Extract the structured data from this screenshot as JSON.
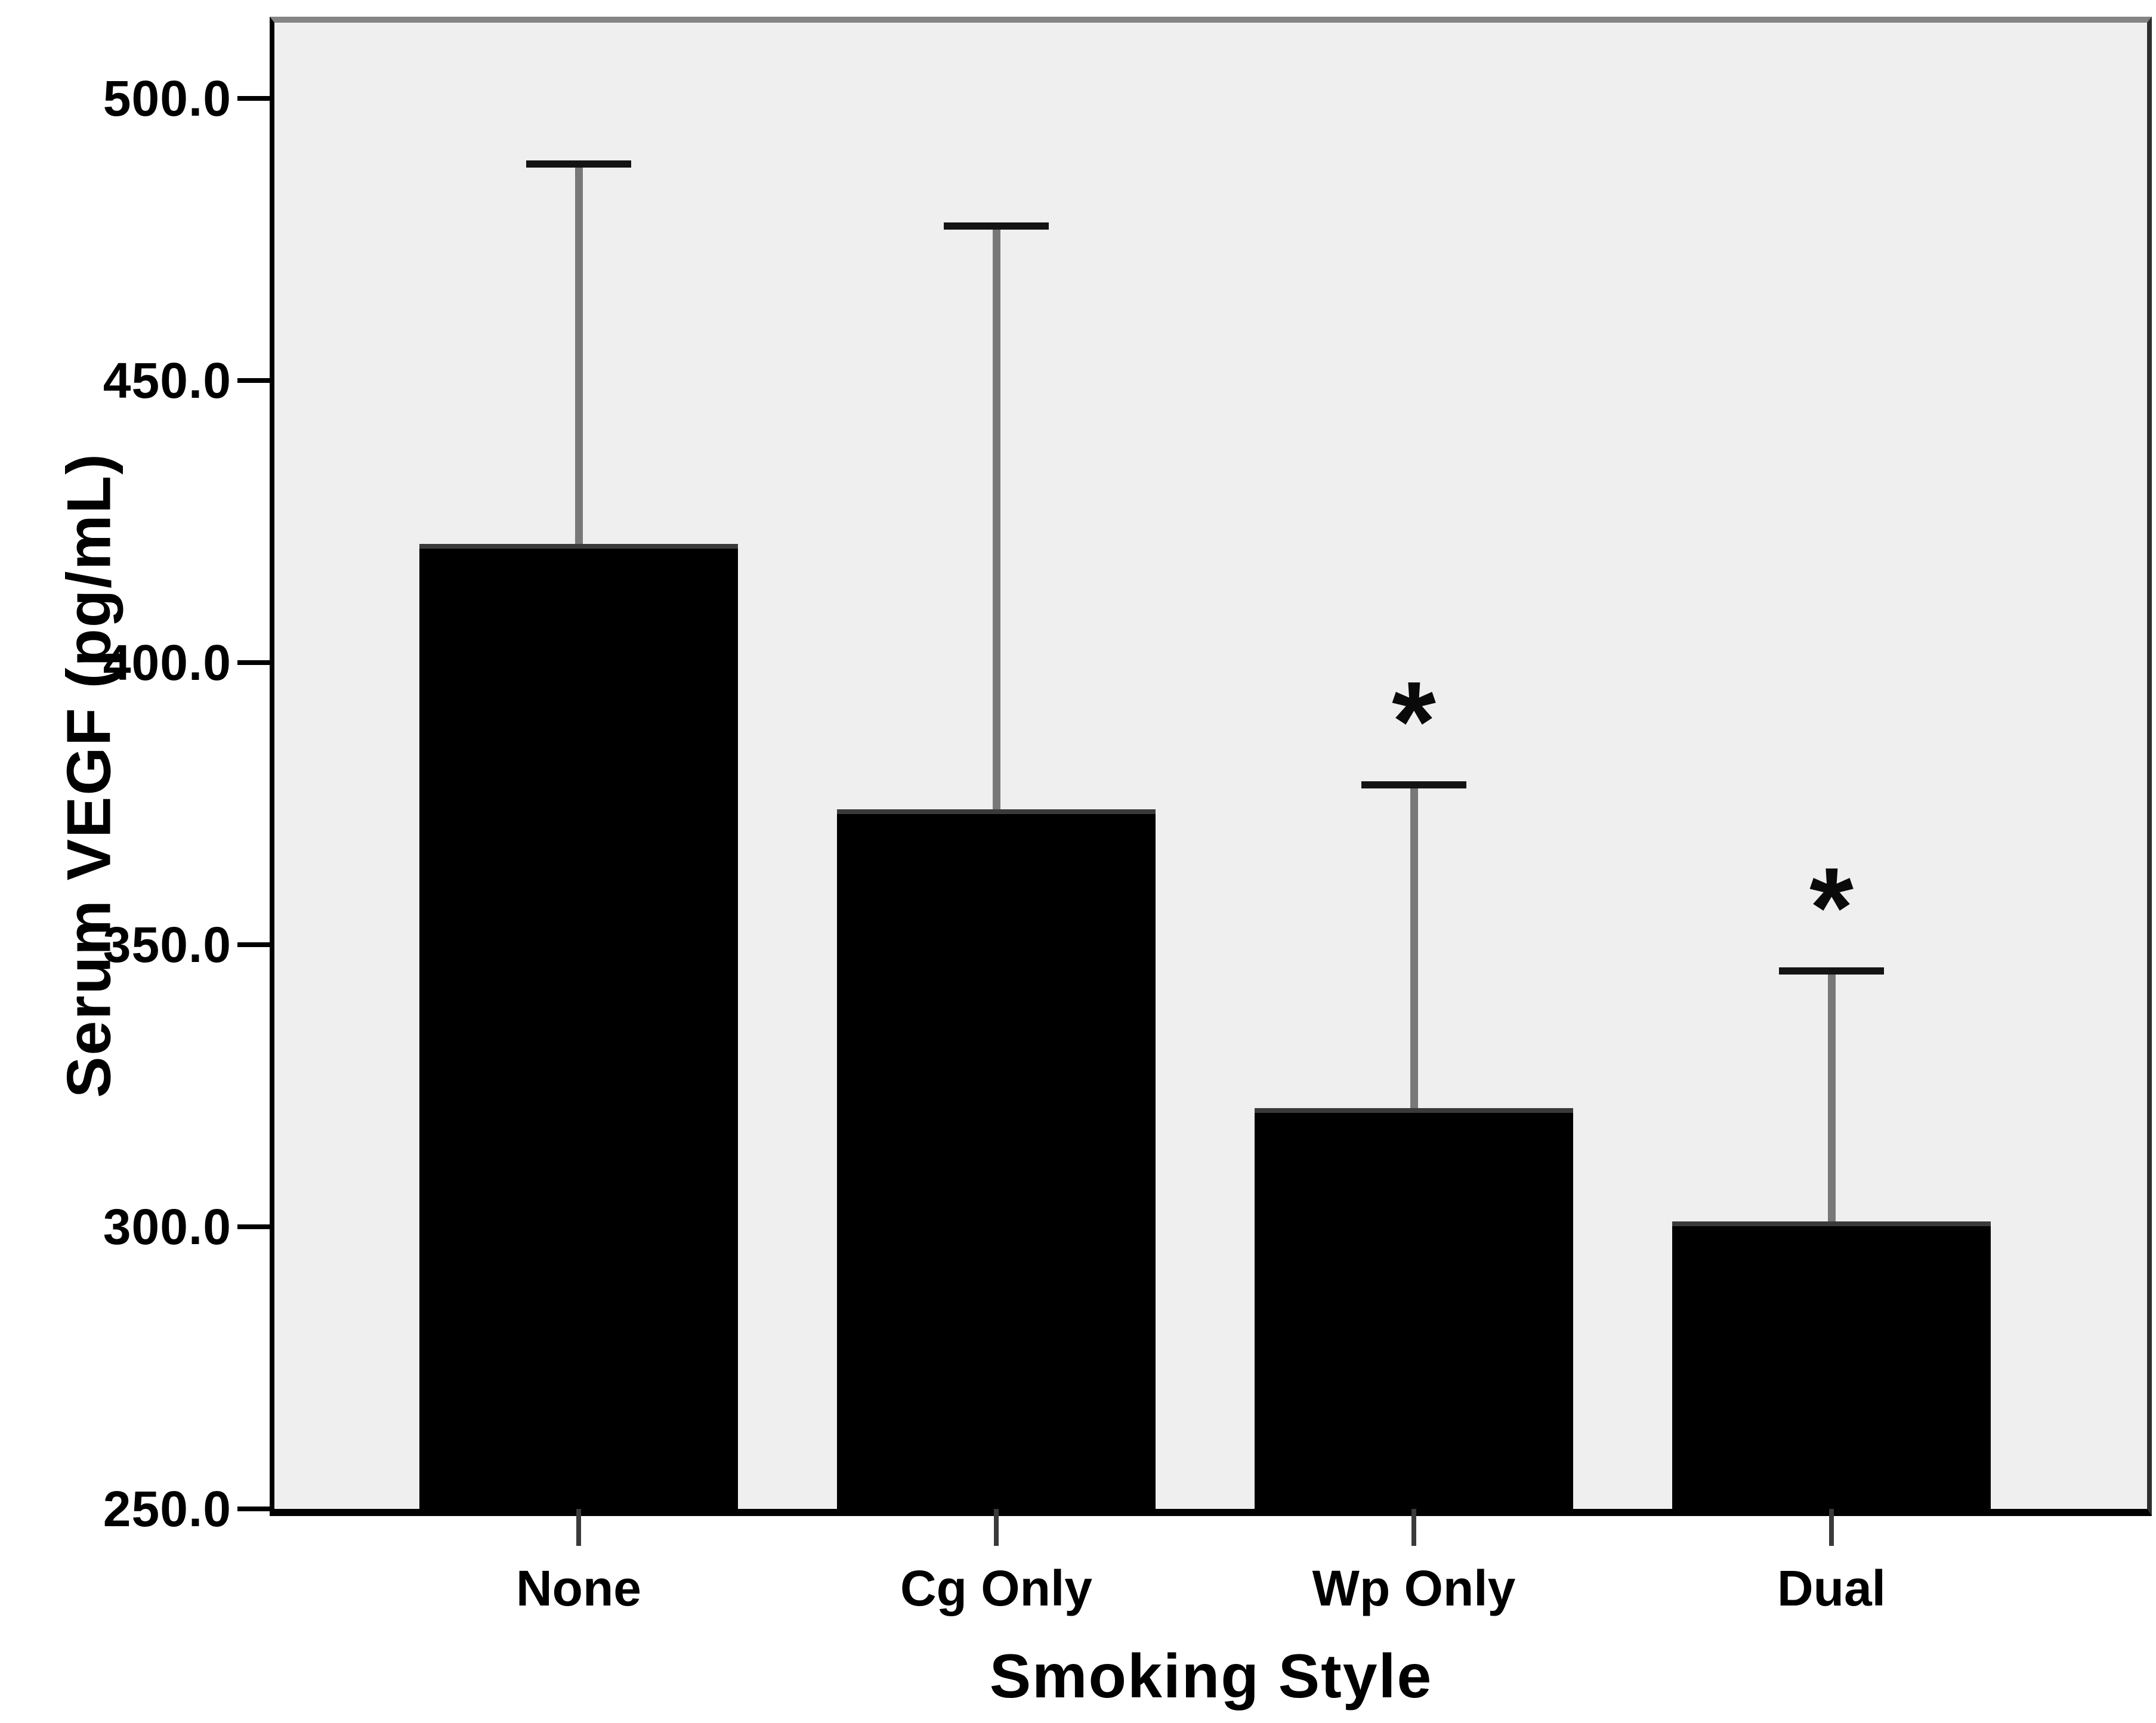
{
  "chart_data": {
    "type": "bar",
    "title": "",
    "categories": [
      "None",
      "Cg Only",
      "Wp Only",
      "Dual"
    ],
    "values": [
      421,
      374,
      321,
      301
    ],
    "error_upper_tops": [
      489,
      478,
      379,
      346
    ],
    "significance_markers": [
      "",
      "",
      "*",
      "*"
    ],
    "xlabel": "Smoking Style",
    "ylabel": "Serum VEGF (pg/mL)",
    "ylim": [
      250,
      500
    ],
    "ytick_labels": [
      "500.0",
      "450.0",
      "400.0",
      "350.0",
      "300.0",
      "250.0"
    ],
    "grid": false,
    "legend": false,
    "bar_color": "#000000",
    "error_bar_color": "#787878",
    "error_cap_color": "#141414",
    "significance_color": "#0a0a0a",
    "plot_background": "#efefef",
    "page_background": "#ffffff"
  }
}
